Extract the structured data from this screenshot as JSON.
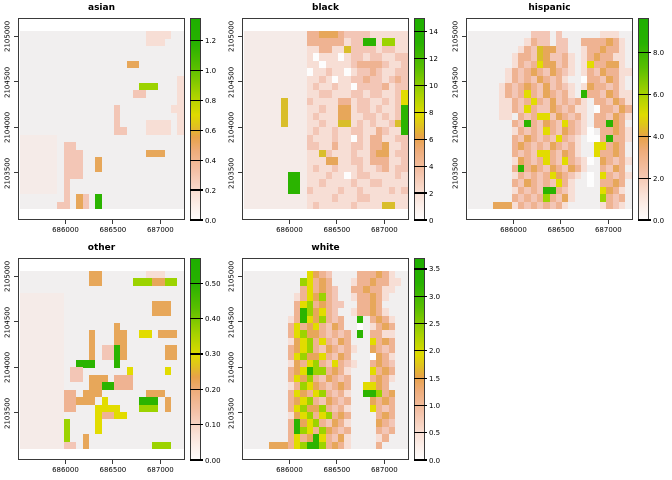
{
  "figure": {
    "background": "#FFFFFF",
    "panel_background": "#F1EFEF",
    "box_border_color": "#3A3A3A",
    "text_color": "#000000"
  },
  "chart_data": {
    "type": "heatmap",
    "description": "Five-panel spatial raster trellis (R spplot style) of demographic density surfaces, one panel per group, each with its own color key",
    "layout": {
      "rows": 2,
      "cols": 3,
      "panel_order": [
        [
          "asian",
          "black",
          "hispanic"
        ],
        [
          "other",
          "white",
          null
        ]
      ],
      "legend_position": "right-of-each-panel",
      "grid": false
    },
    "x_axis": {
      "ticks": [
        686000,
        686500,
        687000
      ],
      "tick_labels": [
        "686000",
        "686500",
        "687000"
      ],
      "range": [
        685500,
        687260
      ]
    },
    "y_axis": {
      "ticks": [
        2103500,
        2104000,
        2104500,
        2105000
      ],
      "tick_labels": [
        "2103500",
        "2104000",
        "2104500",
        "2105000"
      ],
      "range": [
        2102980,
        2105200
      ]
    },
    "color_scale": {
      "stops": [
        {
          "pos": 0.0,
          "color": "#FEFDFD"
        },
        {
          "pos": 0.12,
          "color": "#FAE2D8"
        },
        {
          "pos": 0.24,
          "color": "#F3C0A6"
        },
        {
          "pos": 0.34,
          "color": "#EEAC7B"
        },
        {
          "pos": 0.41,
          "color": "#E8A249"
        },
        {
          "pos": 0.47,
          "color": "#E0C41C"
        },
        {
          "pos": 0.52,
          "color": "#DFDA00"
        },
        {
          "pos": 0.63,
          "color": "#A4D100"
        },
        {
          "pos": 0.76,
          "color": "#57BE00"
        },
        {
          "pos": 0.88,
          "color": "#27B100"
        },
        {
          "pos": 1.0,
          "color": "#1EAF00"
        }
      ]
    },
    "cell_colors": {
      ".": null,
      "p": "#F5EBE8",
      "q": "#F7DED5",
      "r": "#F3C6B6",
      "s": "#EFB392",
      "t": "#E7A75A",
      "o": "#D9BE2A",
      "y": "#E2DC00",
      "l": "#9CD300",
      "g": "#2BB400",
      "w": "#FDFDFD"
    },
    "panels": [
      {
        "title": "asian",
        "legend_max": 1.35,
        "legend_ticks": [
          {
            "label": "0.0",
            "value": 0.0
          },
          {
            "label": "0.2",
            "value": 0.2
          },
          {
            "label": "0.4",
            "value": 0.4
          },
          {
            "label": "0.6",
            "value": 0.6
          },
          {
            "label": "0.8",
            "value": 0.8
          },
          {
            "label": "1.0",
            "value": 1.0
          },
          {
            "label": "1.2",
            "value": 1.2
          }
        ],
        "grid": [
          "....................qqqq..",
          "....................qqq...",
          "..........................",
          "..........................",
          ".................tt.......",
          "..........................",
          ".........................q",
          "...................lll...q",
          "..................rr.....q",
          ".........................q",
          "...............r........qq",
          "...............r.........q",
          "...............r....qqqq.q",
          "...............rr...qqqq.q",
          "pppppp....................",
          "pppppp.rr.................",
          "pppppp.rrr..........ttt...",
          "pppppp.rrr..t.............",
          "pppppp.rrr..t.............",
          "pppppp.rrr................",
          "pppppp.r..................",
          "pppppp.r..................",
          ".......r.tr.g.............",
          "......rr.tr.g............."
        ]
      },
      {
        "title": "black",
        "legend_max": 15,
        "legend_ticks": [
          {
            "label": "0",
            "value": 0
          },
          {
            "label": "2",
            "value": 2
          },
          {
            "label": "4",
            "value": 4
          },
          {
            "label": "6",
            "value": 6
          },
          {
            "label": "8",
            "value": 8
          },
          {
            "label": "10",
            "value": 10
          },
          {
            "label": "12",
            "value": 12
          },
          {
            "label": "14",
            "value": 14
          }
        ],
        "grid": [
          "ppppppppppsstttsrrrrqqqqqq",
          "ppppppppppssssssqrrggqllqq",
          "ppppppppppqqssqqorrrrqrrqq",
          "ppppppppppqwqqqwqrrqrrqqrr",
          "ppppppppppqqwqqqqrssssrqqr",
          "ppppppppppwqqrqqwqrrsrqqrr",
          "ppppppppppqqrqwqqrrsrrqrsr",
          "ppppppppppqrqqrqqwrrrrsqrr",
          "ppppppppppqqrrqqqrrqrrqqry",
          "ppppppoppprqqqqssqrrqqrqry",
          "ppppppopppqqrqqttqrrqrqqrg",
          "ppppppopppqrqqqttqqrrqrqrg",
          "ppppppopppqqrqqooqrqrqqrog",
          "ppppppppppqrqqrqqrrqqsrqqg",
          "pppppppppprqqqrqqwrqssqqrr",
          "pppppppppprrqqsqqrrqsstqqr",
          "ppppppppppqqorqqqrqqsttqrr",
          "ppppppppppqqqttqqrrqsssqqr",
          "ppppppppppqrqqrqqqrqqrsqrr",
          "pppppppggpqqqrqqwqrrqqqqrq",
          "pppppppggpqqrqqqqrqqrrqqqq",
          "pppppppggprqqqqrqqrqqqqrqr",
          "ppppppppppqqqqrqqqrrqqqqqq",
          "ppppppppppqrqqqqqrqqqqooqq"
        ]
      },
      {
        "title": "hispanic",
        "legend_max": 9.65,
        "legend_ticks": [
          {
            "label": "0.0",
            "value": 0.0
          },
          {
            "label": "2.0",
            "value": 2.0
          },
          {
            "label": "4.0",
            "value": 4.0
          },
          {
            "label": "6.0",
            "value": 6.0
          },
          {
            "label": "8.0",
            "value": 8.0
          }
        ],
        "grid": [
          "..........rrr.r......qqq..",
          ".........qsrr.rr..sssstsq.",
          "........qsrottrr..qsstssq.",
          ".......qssrotrrsq.qstssqq.",
          ".......qsrsyttrsq.qyssttq.",
          "......qsrstsrtsrq.qsrtssqq",
          "......qsrsrtsrsq..wssrtsq.",
          ".....qsrstsrtrsrq.qtssrsq.",
          ".....qsrsysrtsrsq.gssrtsqq",
          ".....qqsrsysrtrsrsq.ssrtsq",
          ".....qqsrysrrtsrsqq.wssrts",
          ".....qq.srsyyrtsrsq.ssrtsq",
          ".......srgsrtsrysrq.ssgts.",
          ".......qsrsrysrtsrqw.sstsq",
          ".......srtsrsrysrq.wwsgssq",
          ".......stsrsrtsrsq..yysts.",
          ".......srsryysrtsq..yssts.",
          ".......qtsrsysrysrqw.tsrsq",
          ".......sgstsrtsrtsq..srts.",
          ".......qsrsrsytsrq.w.ysrsq",
          ".......srtsrsrysq..w.ssts.",
          ".......qsrsrggsrq....ytsq.",
          ".......srsrslsrtq....lsrs.",
          "....tttqsrsrsrsq.....qsrq."
        ]
      },
      {
        "title": "other",
        "legend_max": 0.5714,
        "legend_ticks": [
          {
            "label": "0.00",
            "value": 0.0
          },
          {
            "label": "0.10",
            "value": 0.1
          },
          {
            "label": "0.20",
            "value": 0.2
          },
          {
            "label": "0.30",
            "value": 0.3
          },
          {
            "label": "0.40",
            "value": 0.4
          },
          {
            "label": "0.50",
            "value": 0.5
          }
        ],
        "grid": [
          "...........tt.......qqq...",
          "...........tt.....lllttll.",
          "..........................",
          "ppppppp...................",
          "ppppppp..............ttt..",
          "ppppppp..............ttt..",
          "ppppppp...................",
          "ppppppp........t..........",
          "ppppppp....t...tt..yy.ttt.",
          "ppppppp....t...tt.........",
          "ppppppp....t.rrgt......tt.",
          "ppppppp....t.rrgt......tt.",
          "ppppppp..ggg...g..........",
          "ppppppp.rr.......y.....y..",
          "ppppppp.rr.ttt.sss.......",
          "ppppppp....ttggsss........",
          "pppppppss.ttt.......ttt...",
          "pppppppssttt y.....ggg.t..",
          "pppppppss...yyyy...lll.t..",
          "ppppppp.....yssyy.........",
          "pppppppl....y.............",
          "pppppppl....y.............",
          "pppppppl..t...............",
          "ppppppprr.t..........lll.."
        ]
      },
      {
        "title": "white",
        "legend_max": 3.7,
        "legend_ticks": [
          {
            "label": "0.0",
            "value": 0.0
          },
          {
            "label": "0.5",
            "value": 0.5
          },
          {
            "label": "1.0",
            "value": 1.0
          },
          {
            "label": "1.5",
            "value": 1.5
          },
          {
            "label": "2.0",
            "value": 2.0
          },
          {
            "label": "2.5",
            "value": 2.5
          },
          {
            "label": "3.0",
            "value": 3.0
          },
          {
            "label": "3.5",
            "value": 3.5
          }
        ],
        "grid": [
          "..........ytsr....ssstsq..",
          ".........lysts...qsstssqq.",
          ".........systsr..sstssqq..",
          "........qsytlsr..qsstsq...",
          "........sylstsrr..ssts....",
          "........sgltysr..qsstsq...",
          ".......qsgytlsrs..g.stsq..",
          ".......systysrts..w.qsts..",
          ".......sylttsrsrs.g.ssqq..",
          ".......qtylsysrts...ysts..",
          ".......stylsrtsrsq..tsrs..",
          ".......sylttysrts...wtsq..",
          ".......qtsylsrysrq..stsr..",
          ".......stygllstsq...ysts..",
          ".......sytlsrtsrs...stsq..",
          ".......qslytsrsts..yyts...",
          ".......sytsylsrsq..gglst..",
          ".......stylsrtsrs...tsts..",
          ".......sylttlsrsq...ysrs..",
          ".......qtylsylsts....sts..",
          ".......sgtylsrtsq....tsr..",
          ".......sglysltsrs....srs..",
          ".......systgysrtq....qs...",
          "....tttsylgglstsq....s...."
        ]
      }
    ]
  }
}
